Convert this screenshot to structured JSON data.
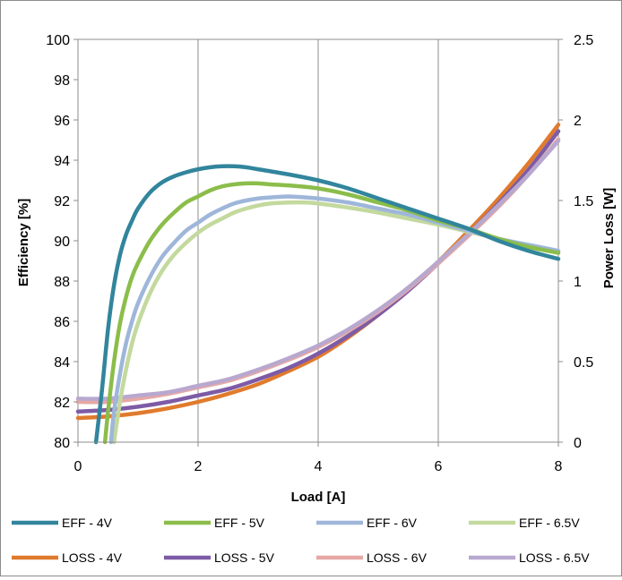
{
  "chart_data": {
    "type": "line",
    "title": "",
    "xlabel": "Load [A]",
    "ylabel": "Efficiency [%]",
    "y2label": "Power Loss [W]",
    "xlim": [
      0,
      8
    ],
    "ylim": [
      80,
      100
    ],
    "y2lim": [
      0,
      2.5
    ],
    "x_ticks": [
      "0",
      "2",
      "4",
      "6",
      "8"
    ],
    "y_ticks": [
      "80",
      "82",
      "84",
      "86",
      "88",
      "90",
      "92",
      "94",
      "96",
      "98",
      "100"
    ],
    "y2_ticks": [
      "0",
      "0.5",
      "1",
      "1.5",
      "2",
      "2.5"
    ],
    "grid": "vertical",
    "legend_position": "bottom",
    "series": [
      {
        "name": "EFF - 4V",
        "axis": "left",
        "color": "#31859c",
        "x": [
          0.3,
          0.4,
          0.5,
          0.6,
          0.7,
          0.8,
          0.9,
          1.0,
          1.2,
          1.4,
          1.6,
          1.8,
          2.0,
          2.2,
          2.4,
          2.6,
          2.8,
          3.0,
          3.5,
          4.0,
          4.5,
          5.0,
          5.5,
          6.0,
          6.5,
          7.0,
          7.5,
          8.0
        ],
        "y": [
          80.0,
          82.6,
          85.6,
          87.8,
          89.3,
          90.3,
          91.0,
          91.6,
          92.4,
          92.9,
          93.2,
          93.4,
          93.55,
          93.65,
          93.7,
          93.7,
          93.65,
          93.55,
          93.3,
          93.0,
          92.6,
          92.1,
          91.6,
          91.1,
          90.6,
          90.0,
          89.5,
          89.1
        ]
      },
      {
        "name": "EFF - 5V",
        "axis": "left",
        "color": "#8bbd4a",
        "x": [
          0.45,
          0.5,
          0.6,
          0.7,
          0.8,
          0.9,
          1.0,
          1.2,
          1.4,
          1.6,
          1.8,
          2.0,
          2.2,
          2.4,
          2.6,
          2.8,
          3.0,
          3.2,
          3.5,
          4.0,
          4.5,
          5.0,
          5.5,
          6.0,
          6.5,
          7.0,
          7.5,
          8.0
        ],
        "y": [
          80.0,
          81.5,
          84.0,
          85.9,
          87.2,
          88.2,
          88.9,
          90.0,
          90.8,
          91.4,
          91.9,
          92.2,
          92.5,
          92.7,
          92.8,
          92.85,
          92.85,
          92.8,
          92.75,
          92.6,
          92.3,
          91.9,
          91.5,
          91.0,
          90.6,
          90.1,
          89.7,
          89.4
        ]
      },
      {
        "name": "EFF - 6V",
        "axis": "left",
        "color": "#9eb6d9",
        "x": [
          0.55,
          0.6,
          0.7,
          0.8,
          0.9,
          1.0,
          1.2,
          1.4,
          1.6,
          1.8,
          2.0,
          2.2,
          2.4,
          2.6,
          2.8,
          3.0,
          3.2,
          3.5,
          3.8,
          4.0,
          4.5,
          5.0,
          5.5,
          6.0,
          6.5,
          7.0,
          7.5,
          8.0
        ],
        "y": [
          80.0,
          81.5,
          83.4,
          84.9,
          86.0,
          86.9,
          88.2,
          89.2,
          89.9,
          90.5,
          90.9,
          91.3,
          91.6,
          91.85,
          92.0,
          92.1,
          92.15,
          92.2,
          92.15,
          92.1,
          91.9,
          91.6,
          91.3,
          90.9,
          90.5,
          90.1,
          89.8,
          89.5
        ]
      },
      {
        "name": "EFF - 6.5V",
        "axis": "left",
        "color": "#c3d99e",
        "x": [
          0.6,
          0.7,
          0.8,
          0.9,
          1.0,
          1.2,
          1.4,
          1.6,
          1.8,
          2.0,
          2.2,
          2.4,
          2.6,
          2.8,
          3.0,
          3.2,
          3.5,
          3.8,
          4.0,
          4.5,
          5.0,
          5.5,
          6.0,
          6.5,
          7.0,
          7.5,
          8.0
        ],
        "y": [
          80.0,
          82.0,
          83.6,
          84.9,
          85.9,
          87.4,
          88.5,
          89.3,
          89.9,
          90.4,
          90.8,
          91.1,
          91.4,
          91.6,
          91.75,
          91.85,
          91.9,
          91.9,
          91.85,
          91.65,
          91.4,
          91.1,
          90.8,
          90.45,
          90.1,
          89.75,
          89.4
        ]
      },
      {
        "name": "LOSS - 4V",
        "axis": "right",
        "color": "#e07b2d",
        "x": [
          0,
          0.5,
          1.0,
          1.5,
          2.0,
          2.5,
          3.0,
          3.5,
          4.0,
          4.5,
          5.0,
          5.5,
          6.0,
          6.5,
          7.0,
          7.5,
          8.0
        ],
        "y": [
          0.15,
          0.16,
          0.18,
          0.21,
          0.25,
          0.3,
          0.36,
          0.44,
          0.53,
          0.65,
          0.79,
          0.95,
          1.12,
          1.31,
          1.51,
          1.73,
          1.97
        ]
      },
      {
        "name": "LOSS - 5V",
        "axis": "right",
        "color": "#7d5ba6",
        "x": [
          0,
          0.5,
          1.0,
          1.5,
          2.0,
          2.5,
          3.0,
          3.5,
          4.0,
          4.5,
          5.0,
          5.5,
          6.0,
          6.5,
          7.0,
          7.5,
          8.0
        ],
        "y": [
          0.19,
          0.2,
          0.22,
          0.25,
          0.29,
          0.33,
          0.39,
          0.46,
          0.55,
          0.66,
          0.79,
          0.94,
          1.11,
          1.29,
          1.48,
          1.69,
          1.93
        ]
      },
      {
        "name": "LOSS - 6V",
        "axis": "right",
        "color": "#e6a8a4",
        "x": [
          0,
          0.5,
          1.0,
          1.5,
          2.0,
          2.5,
          3.0,
          3.5,
          4.0,
          4.5,
          5.0,
          5.5,
          6.0,
          6.5,
          7.0,
          7.5,
          8.0
        ],
        "y": [
          0.25,
          0.25,
          0.27,
          0.3,
          0.34,
          0.38,
          0.44,
          0.51,
          0.59,
          0.69,
          0.81,
          0.95,
          1.11,
          1.28,
          1.46,
          1.66,
          1.88
        ]
      },
      {
        "name": "LOSS - 6.5V",
        "axis": "right",
        "color": "#b8a8cf",
        "x": [
          0,
          0.5,
          1.0,
          1.5,
          2.0,
          2.5,
          3.0,
          3.5,
          4.0,
          4.5,
          5.0,
          5.5,
          6.0,
          6.5,
          7.0,
          7.5,
          8.0
        ],
        "y": [
          0.27,
          0.27,
          0.29,
          0.31,
          0.35,
          0.39,
          0.45,
          0.52,
          0.6,
          0.7,
          0.82,
          0.96,
          1.12,
          1.29,
          1.47,
          1.66,
          1.87
        ]
      }
    ]
  }
}
